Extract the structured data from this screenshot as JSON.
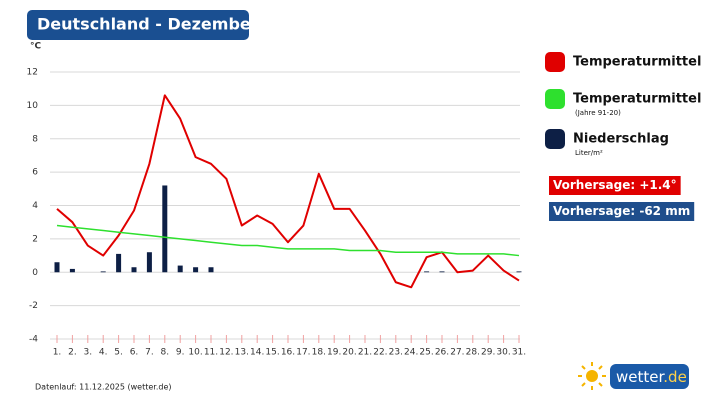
{
  "chart_data": {
    "type": "line",
    "title": "Deutschland - Dezember",
    "y_unit": "°C",
    "categories": [
      "1.",
      "2.",
      "3.",
      "4.",
      "5.",
      "6.",
      "7.",
      "8.",
      "9.",
      "10.",
      "11.",
      "12.",
      "13.",
      "14.",
      "15.",
      "16.",
      "17.",
      "18.",
      "19.",
      "20.",
      "21.",
      "22.",
      "23.",
      "24.",
      "25.",
      "26.",
      "27.",
      "28.",
      "29.",
      "30.",
      "31."
    ],
    "category_label_colors": [
      "#222",
      "#222",
      "#222",
      "#222",
      "#222",
      "#d00000",
      "#d00000",
      "#222",
      "#222",
      "#222",
      "#222",
      "#222",
      "#d00000",
      "#d00000",
      "#222",
      "#222",
      "#222",
      "#222",
      "#222",
      "#d00000",
      "#d00000",
      "#222",
      "#222",
      "#222",
      "#222",
      "#222",
      "#d00000",
      "#d00000",
      "#222",
      "#222",
      "#222"
    ],
    "series": [
      {
        "name": "Temperaturmittel",
        "type": "line",
        "color": "#e00000",
        "values": [
          3.8,
          3.0,
          1.6,
          1.0,
          2.2,
          3.7,
          6.5,
          10.6,
          9.2,
          6.9,
          6.5,
          5.6,
          2.8,
          3.4,
          2.9,
          1.8,
          2.8,
          5.9,
          3.8,
          3.8,
          2.5,
          1.1,
          -0.6,
          -0.9,
          0.9,
          1.2,
          0.0,
          0.1,
          1.0,
          0.1,
          -0.5
        ]
      },
      {
        "name": "Temperaturmittel",
        "sublabel": "(Jahre 91-20)",
        "type": "line",
        "color": "#2ee02e",
        "values": [
          2.8,
          2.7,
          2.6,
          2.5,
          2.4,
          2.3,
          2.2,
          2.1,
          2.0,
          1.9,
          1.8,
          1.7,
          1.6,
          1.6,
          1.5,
          1.4,
          1.4,
          1.4,
          1.4,
          1.3,
          1.3,
          1.3,
          1.2,
          1.2,
          1.2,
          1.2,
          1.1,
          1.1,
          1.1,
          1.1,
          1.0
        ]
      },
      {
        "name": "Niederschlag",
        "sublabel": "Liter/m²",
        "type": "bar",
        "color": "#0d1f45",
        "values": [
          0.6,
          0.2,
          0,
          0.05,
          1.1,
          0.3,
          1.2,
          5.2,
          0.4,
          0.3,
          0.3,
          0,
          0,
          0,
          0,
          0,
          0,
          0,
          0,
          0,
          0,
          0,
          0,
          0,
          0.05,
          0.05,
          0,
          0,
          0,
          0,
          0.05
        ]
      }
    ],
    "ylim": [
      -4,
      12
    ],
    "yticks": [
      -4,
      -2,
      0,
      2,
      4,
      6,
      8,
      10,
      12
    ],
    "grid": true,
    "forecasts": [
      {
        "text": "Vorhersage: +1.4°",
        "color": "#e00000"
      },
      {
        "text": "Vorhersage: -62 mm",
        "color": "#1f4e8c"
      }
    ],
    "footnote": "Datenlauf: 11.12.2025 (wetter.de)",
    "logo": [
      "wetter",
      ".de"
    ]
  }
}
